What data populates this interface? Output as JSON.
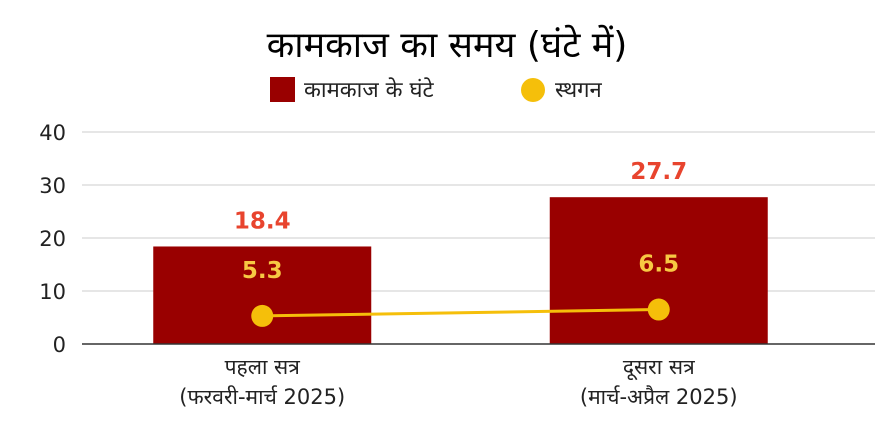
{
  "chart_data": {
    "type": "bar",
    "title": "कामकाज का समय (घंटे में)",
    "categories": [
      [
        "पहला सत्र",
        "(फरवरी-मार्च 2025)"
      ],
      [
        "दूसरा सत्र",
        "(मार्च-अप्रैल 2025)"
      ]
    ],
    "series": [
      {
        "name": "कामकाज के घंटे",
        "type": "bar",
        "values": [
          18.4,
          27.7
        ],
        "color": "#990000",
        "label_color": "#e8442e"
      },
      {
        "name": "स्थगन",
        "type": "line",
        "values": [
          5.3,
          6.5
        ],
        "color": "#f5bf0a",
        "label_color": "#f7c843"
      }
    ],
    "ylim": [
      0,
      40
    ],
    "yticks": [
      0,
      10,
      20,
      30,
      40
    ],
    "grid": true,
    "legend": "top-center"
  }
}
